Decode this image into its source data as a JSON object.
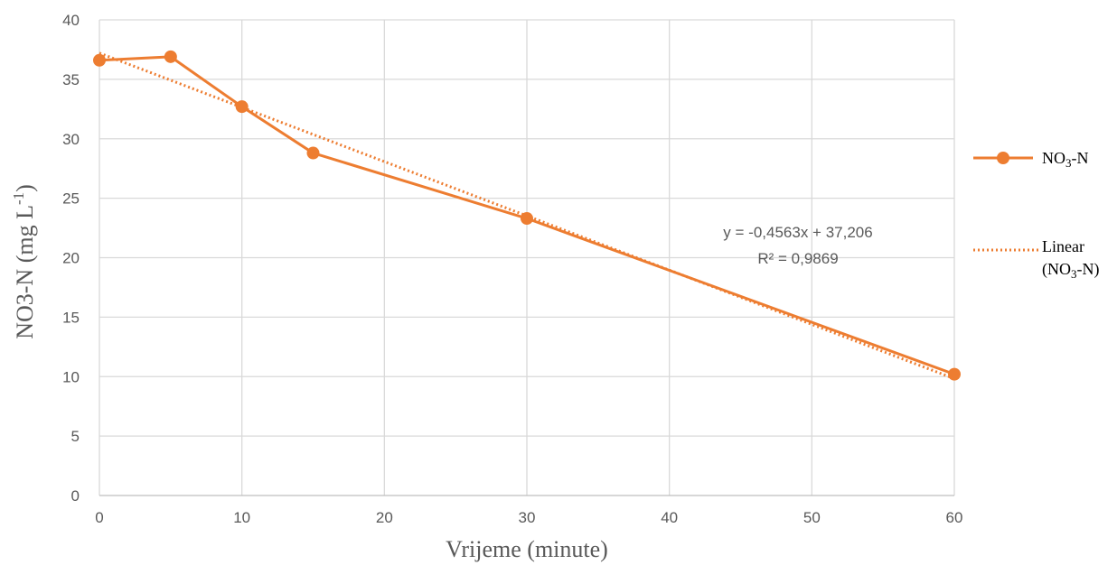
{
  "chart_data": {
    "type": "line",
    "xlabel": "Vrijeme (minute)",
    "ylabel_main": "NO3-N (mg L",
    "ylabel_sup": "-1",
    "ylabel_tail": ")",
    "xlim": [
      0,
      60
    ],
    "ylim": [
      0,
      40
    ],
    "xticks": [
      0,
      10,
      20,
      30,
      40,
      50,
      60
    ],
    "yticks": [
      0,
      5,
      10,
      15,
      20,
      25,
      30,
      35,
      40
    ],
    "grid": true,
    "legend_position": "right",
    "series": [
      {
        "name": "NO3-N",
        "name_parts": [
          "NO",
          "3",
          "-N"
        ],
        "x": [
          0,
          5,
          10,
          15,
          30,
          60
        ],
        "y": [
          36.6,
          36.9,
          32.7,
          28.8,
          23.3,
          10.2
        ],
        "color": "#ED7D31"
      }
    ],
    "trendline": {
      "name_line1": "Linear",
      "name_line2_parts": [
        "(NO",
        "3",
        "-N)"
      ],
      "slope": -0.4563,
      "intercept": 37.206,
      "equation": "y = -0,4563x + 37,206",
      "r2": "R² = 0,9869",
      "color": "#ED7D31"
    }
  }
}
